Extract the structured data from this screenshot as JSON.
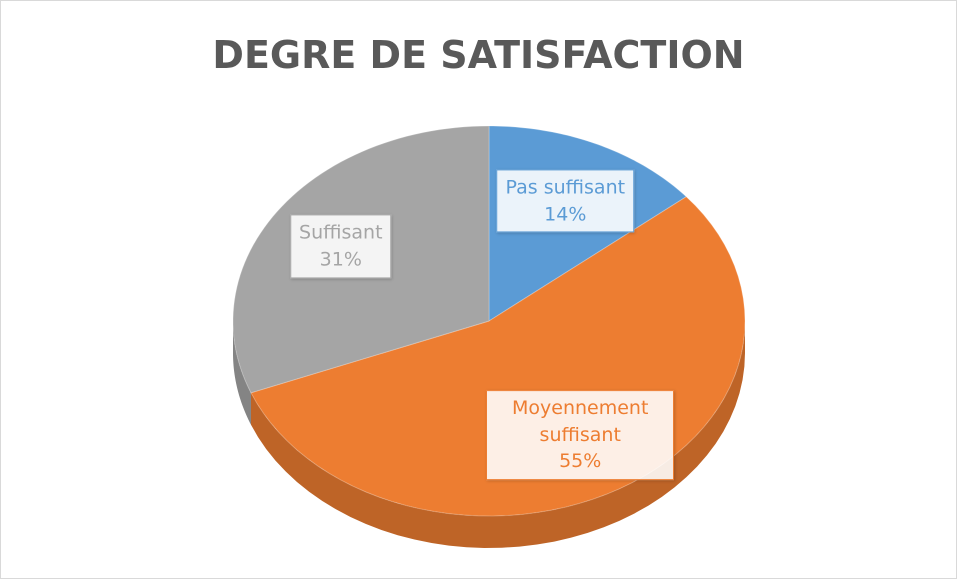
{
  "chart_data": {
    "type": "pie",
    "title": "DEGRE DE SATISFACTION",
    "categories": [
      "Pas suffisant",
      "Moyennement suffisant",
      "Suffisant"
    ],
    "values": [
      14,
      55,
      31
    ],
    "value_labels": [
      "14%",
      "55%",
      "31%"
    ],
    "colors": [
      "#5b9bd5",
      "#ed7d31",
      "#a5a5a5"
    ]
  }
}
